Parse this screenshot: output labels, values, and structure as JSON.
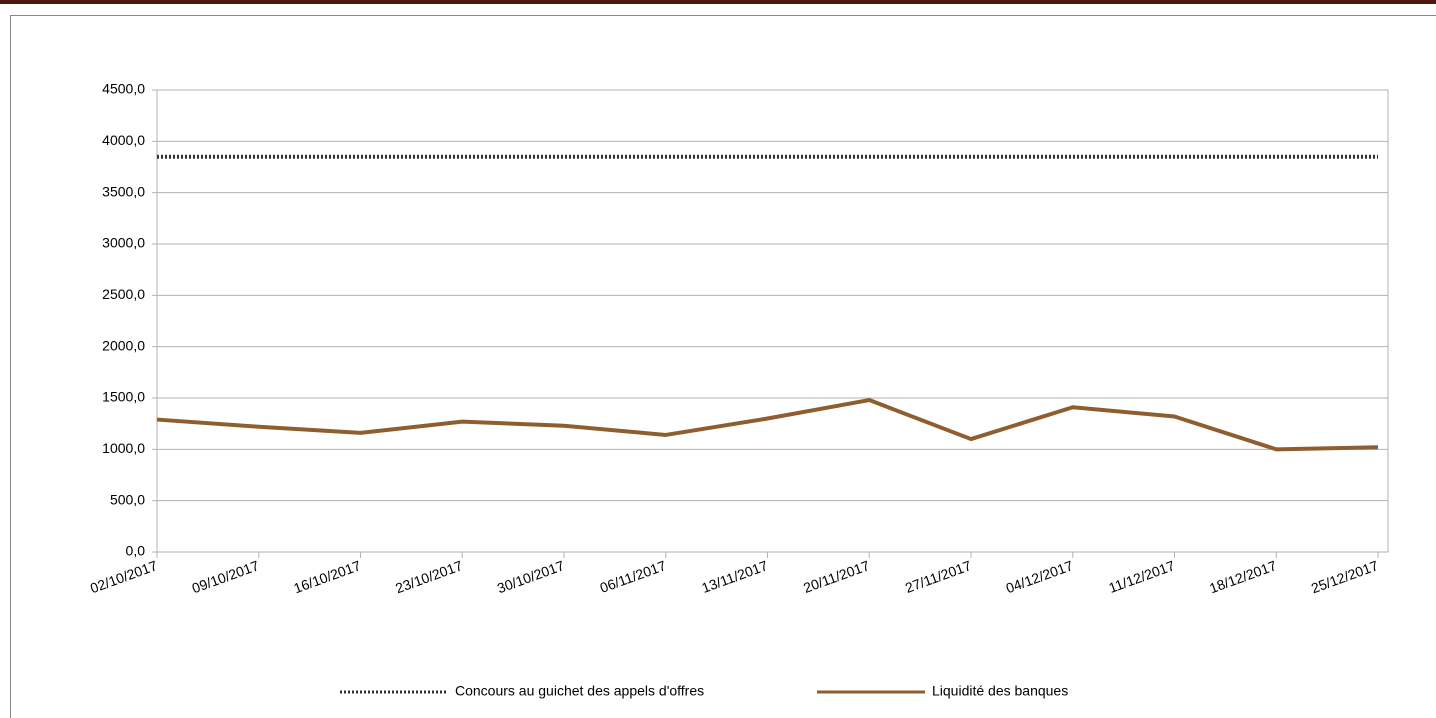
{
  "chart_data": {
    "type": "line",
    "categories": [
      "02/10/2017",
      "09/10/2017",
      "16/10/2017",
      "23/10/2017",
      "30/10/2017",
      "06/11/2017",
      "13/11/2017",
      "20/11/2017",
      "27/11/2017",
      "04/12/2017",
      "11/12/2017",
      "18/12/2017",
      "25/12/2017"
    ],
    "series": [
      {
        "name": "Concours au guichet des appels d'offres",
        "color": "#333333",
        "dash": true,
        "values": [
          3850,
          3850,
          3850,
          3850,
          3850,
          3850,
          3850,
          3850,
          3850,
          3850,
          3850,
          3850,
          3850
        ]
      },
      {
        "name": "Liquidité des banques",
        "color": "#8e5e2e",
        "dash": false,
        "values": [
          1290,
          1220,
          1160,
          1270,
          1230,
          1140,
          1300,
          1480,
          1100,
          1410,
          1320,
          1000,
          1020
        ]
      }
    ],
    "ylim": [
      0,
      4500
    ],
    "yticks": [
      {
        "value": 0,
        "label": "0,0"
      },
      {
        "value": 500,
        "label": "500,0"
      },
      {
        "value": 1000,
        "label": "1000,0"
      },
      {
        "value": 1500,
        "label": "1500,0"
      },
      {
        "value": 2000,
        "label": "2000,0"
      },
      {
        "value": 2500,
        "label": "2500,0"
      },
      {
        "value": 3000,
        "label": "3000,0"
      },
      {
        "value": 3500,
        "label": "3500,0"
      },
      {
        "value": 4000,
        "label": "4000,0"
      },
      {
        "value": 4500,
        "label": "4500,0"
      }
    ],
    "grid": true,
    "legend": "bottom"
  }
}
